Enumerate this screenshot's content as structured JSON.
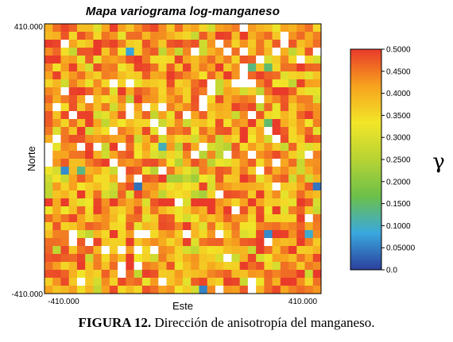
{
  "chart_data": {
    "type": "heatmap",
    "title": "Mapa variograma log-manganeso",
    "xlabel": "Este",
    "ylabel": "Norte",
    "x_tick_labels": [
      "-410.000",
      "410.000"
    ],
    "y_tick_labels": [
      "410.000",
      "-410.000"
    ],
    "xlim": [
      -410000,
      410000
    ],
    "ylim": [
      -410000,
      410000
    ],
    "grid_size": [
      34,
      34
    ],
    "colorbar": {
      "ticks": [
        "0.5000",
        "0.4500",
        "0.4000",
        "0.3500",
        "0.3000",
        "0.2500",
        "0.2000",
        "0.1500",
        "0.1000",
        "0.05000",
        "0.0"
      ],
      "tick_values": [
        0.5,
        0.45,
        0.4,
        0.35,
        0.3,
        0.25,
        0.2,
        0.15,
        0.1,
        0.05,
        0.0
      ],
      "range": [
        0.0,
        0.5
      ],
      "label": "γ",
      "colors": [
        "#2b3f9c",
        "#3aa8de",
        "#6cc04a",
        "#b7d334",
        "#f2e628",
        "#f7a21e",
        "#e93a2a"
      ]
    },
    "missing_color": "#ffffff",
    "pattern": "speckled; values mostly 0.35-0.50 with scattered low values near the centre"
  },
  "caption": {
    "label": "FIGURA 12.",
    "text": " Dirección de anisotropía del manganeso."
  }
}
